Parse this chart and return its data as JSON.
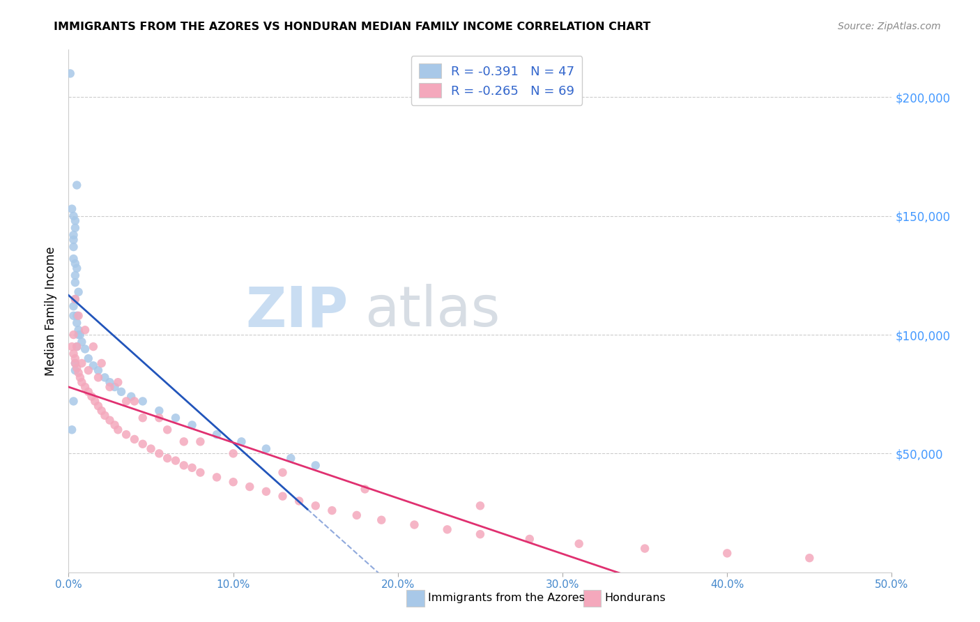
{
  "title": "IMMIGRANTS FROM THE AZORES VS HONDURAN MEDIAN FAMILY INCOME CORRELATION CHART",
  "source": "Source: ZipAtlas.com",
  "ylabel": "Median Family Income",
  "ytick_values": [
    50000,
    100000,
    150000,
    200000
  ],
  "xmin": 0.0,
  "xmax": 0.5,
  "ymin": 0,
  "ymax": 220000,
  "legend_r1": "-0.391",
  "legend_n1": "47",
  "legend_r2": "-0.265",
  "legend_n2": "69",
  "color_azores": "#a8c8e8",
  "color_honduras": "#f4a8bc",
  "line_color_azores": "#2255bb",
  "line_color_honduras": "#e03070",
  "azores_x": [
    0.001,
    0.005,
    0.003,
    0.004,
    0.004,
    0.003,
    0.003,
    0.003,
    0.004,
    0.005,
    0.004,
    0.004,
    0.006,
    0.004,
    0.003,
    0.003,
    0.005,
    0.006,
    0.007,
    0.008,
    0.01,
    0.012,
    0.015,
    0.018,
    0.022,
    0.025,
    0.028,
    0.032,
    0.038,
    0.045,
    0.055,
    0.065,
    0.075,
    0.09,
    0.105,
    0.12,
    0.135,
    0.15,
    0.002,
    0.003,
    0.005,
    0.006,
    0.004,
    0.005,
    0.003,
    0.004,
    0.002
  ],
  "azores_y": [
    210000,
    163000,
    150000,
    148000,
    145000,
    140000,
    137000,
    132000,
    130000,
    128000,
    125000,
    122000,
    118000,
    115000,
    112000,
    108000,
    105000,
    102000,
    100000,
    97000,
    94000,
    90000,
    87000,
    85000,
    82000,
    80000,
    78000,
    76000,
    74000,
    72000,
    68000,
    65000,
    62000,
    58000,
    55000,
    52000,
    48000,
    45000,
    153000,
    142000,
    108000,
    100000,
    85000,
    95000,
    72000,
    88000,
    60000
  ],
  "honduras_x": [
    0.002,
    0.003,
    0.004,
    0.004,
    0.005,
    0.006,
    0.007,
    0.008,
    0.01,
    0.012,
    0.014,
    0.016,
    0.018,
    0.02,
    0.022,
    0.025,
    0.028,
    0.03,
    0.035,
    0.04,
    0.045,
    0.05,
    0.055,
    0.06,
    0.065,
    0.07,
    0.075,
    0.08,
    0.09,
    0.1,
    0.11,
    0.12,
    0.13,
    0.14,
    0.15,
    0.16,
    0.175,
    0.19,
    0.21,
    0.23,
    0.25,
    0.28,
    0.31,
    0.35,
    0.4,
    0.45,
    0.003,
    0.005,
    0.008,
    0.012,
    0.018,
    0.025,
    0.035,
    0.045,
    0.06,
    0.08,
    0.1,
    0.13,
    0.18,
    0.25,
    0.004,
    0.006,
    0.01,
    0.015,
    0.02,
    0.03,
    0.04,
    0.055,
    0.07
  ],
  "honduras_y": [
    95000,
    92000,
    90000,
    88000,
    86000,
    84000,
    82000,
    80000,
    78000,
    76000,
    74000,
    72000,
    70000,
    68000,
    66000,
    64000,
    62000,
    60000,
    58000,
    56000,
    54000,
    52000,
    50000,
    48000,
    47000,
    45000,
    44000,
    42000,
    40000,
    38000,
    36000,
    34000,
    32000,
    30000,
    28000,
    26000,
    24000,
    22000,
    20000,
    18000,
    16000,
    14000,
    12000,
    10000,
    8000,
    6000,
    100000,
    95000,
    88000,
    85000,
    82000,
    78000,
    72000,
    65000,
    60000,
    55000,
    50000,
    42000,
    35000,
    28000,
    115000,
    108000,
    102000,
    95000,
    88000,
    80000,
    72000,
    65000,
    55000
  ]
}
